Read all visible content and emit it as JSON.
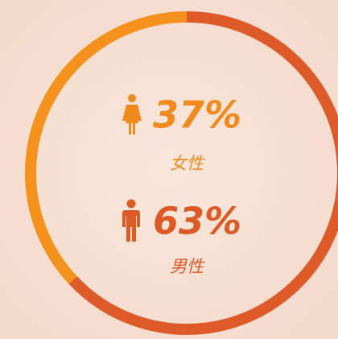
{
  "chart_data": {
    "type": "donut",
    "categories": [
      "女性",
      "男性"
    ],
    "values": [
      37,
      63
    ],
    "value_labels": [
      "37%",
      "63%"
    ],
    "colors": [
      "#f5921e",
      "#de5a29"
    ]
  }
}
